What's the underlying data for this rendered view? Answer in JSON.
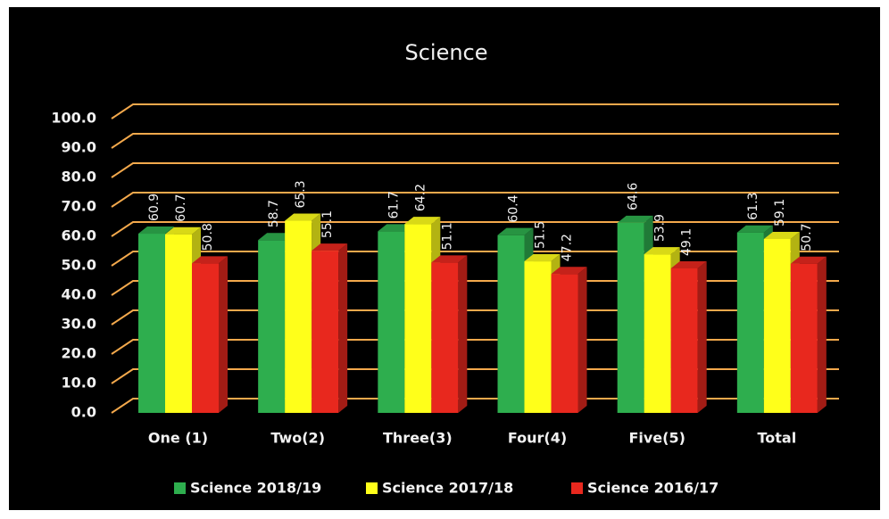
{
  "chart_data": {
    "type": "bar",
    "title": "Science",
    "categories": [
      "One (1)",
      "Two(2)",
      "Three(3)",
      "Four(4)",
      "Five(5)",
      "Total"
    ],
    "series": [
      {
        "name": "Science 2018/19",
        "color": "#2eae4e",
        "values": [
          60.9,
          58.7,
          61.7,
          60.4,
          64.6,
          61.3
        ]
      },
      {
        "name": "Science 2017/18",
        "color": "#ffff1a",
        "values": [
          60.7,
          65.3,
          64.2,
          51.5,
          53.9,
          59.1
        ]
      },
      {
        "name": "Science 2016/17",
        "color": "#e8281e",
        "values": [
          50.8,
          55.1,
          51.1,
          47.2,
          49.1,
          50.7
        ]
      }
    ],
    "ylim": [
      0,
      100
    ],
    "yticks": [
      {
        "value": 0,
        "label": "0.0"
      },
      {
        "value": 10,
        "label": "10.0"
      },
      {
        "value": 20,
        "label": "20.0"
      },
      {
        "value": 30,
        "label": "30.0"
      },
      {
        "value": 40,
        "label": "40.0"
      },
      {
        "value": 50,
        "label": "50.0"
      },
      {
        "value": 60,
        "label": "60.0"
      },
      {
        "value": 70,
        "label": "70.0"
      },
      {
        "value": 80,
        "label": "80.0"
      },
      {
        "value": 90,
        "label": "90.0"
      },
      {
        "value": 100,
        "label": "100.0"
      }
    ],
    "grid": true,
    "legend": "bottom"
  }
}
